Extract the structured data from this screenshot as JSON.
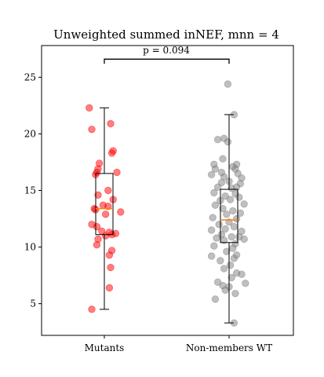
{
  "chart_data": {
    "type": "scatter",
    "title": "Unweighted summed inNEF, mnn = 4",
    "xlabel": "",
    "ylabel": "",
    "categories": [
      "Mutants",
      "Non-members WT"
    ],
    "ylim": [
      2.2,
      27.8
    ],
    "yticks": [
      5,
      10,
      15,
      20,
      25
    ],
    "grid": false,
    "annotation": {
      "text": "p = 0.094",
      "between": [
        0,
        1
      ],
      "y": 26.6
    },
    "colors": {
      "mutants_points": "#ff0000",
      "wt_points": "#808080",
      "box": "#000000",
      "median": "#ff7f0e"
    },
    "series": [
      {
        "category": "Mutants",
        "box": {
          "whisker_low": 4.5,
          "q1": 11.1,
          "median": 13.4,
          "q3": 16.5,
          "whisker_high": 22.3
        },
        "points": [
          [
            -0.12,
            22.3
          ],
          [
            -0.1,
            20.4
          ],
          [
            0.05,
            20.9
          ],
          [
            0.07,
            18.5
          ],
          [
            0.06,
            18.3
          ],
          [
            -0.04,
            17.4
          ],
          [
            -0.05,
            16.9
          ],
          [
            -0.06,
            16.6
          ],
          [
            -0.07,
            16.4
          ],
          [
            0.1,
            16.6
          ],
          [
            0.03,
            15.0
          ],
          [
            -0.05,
            14.6
          ],
          [
            0.07,
            14.2
          ],
          [
            -0.01,
            13.7
          ],
          [
            0.03,
            13.6
          ],
          [
            -0.08,
            13.4
          ],
          [
            -0.07,
            13.3
          ],
          [
            0.13,
            13.1
          ],
          [
            0.01,
            12.9
          ],
          [
            -0.1,
            12.0
          ],
          [
            -0.06,
            11.8
          ],
          [
            -0.02,
            11.4
          ],
          [
            0.04,
            11.3
          ],
          [
            0.09,
            11.2
          ],
          [
            0.01,
            11.0
          ],
          [
            0.06,
            11.1
          ],
          [
            -0.05,
            10.7
          ],
          [
            -0.06,
            10.2
          ],
          [
            0.06,
            9.7
          ],
          [
            0.04,
            9.3
          ],
          [
            0.05,
            8.2
          ],
          [
            0.04,
            6.4
          ],
          [
            -0.1,
            4.5
          ]
        ]
      },
      {
        "category": "Non-members WT",
        "box": {
          "whisker_low": 3.3,
          "q1": 10.4,
          "median": 12.4,
          "q3": 15.1,
          "whisker_high": 21.7
        },
        "points": [
          [
            -0.01,
            24.4
          ],
          [
            0.04,
            21.7
          ],
          [
            -0.09,
            19.5
          ],
          [
            -0.04,
            19.6
          ],
          [
            -0.01,
            19.3
          ],
          [
            -0.05,
            17.8
          ],
          [
            -0.12,
            17.3
          ],
          [
            0.06,
            17.3
          ],
          [
            0.03,
            17.1
          ],
          [
            0.05,
            16.9
          ],
          [
            -0.11,
            16.9
          ],
          [
            -0.06,
            16.6
          ],
          [
            -0.14,
            16.4
          ],
          [
            0.07,
            16.5
          ],
          [
            0.1,
            16.1
          ],
          [
            -0.04,
            16.2
          ],
          [
            0.0,
            15.8
          ],
          [
            -0.06,
            15.7
          ],
          [
            0.09,
            15.6
          ],
          [
            0.06,
            15.3
          ],
          [
            0.02,
            15.2
          ],
          [
            -0.09,
            15.3
          ],
          [
            -0.12,
            14.8
          ],
          [
            0.05,
            14.7
          ],
          [
            0.08,
            14.4
          ],
          [
            -0.03,
            14.5
          ],
          [
            -0.07,
            14.1
          ],
          [
            0.01,
            14.2
          ],
          [
            0.12,
            13.8
          ],
          [
            -0.11,
            13.7
          ],
          [
            -0.05,
            13.4
          ],
          [
            0.03,
            13.2
          ],
          [
            0.09,
            13.0
          ],
          [
            -0.02,
            12.9
          ],
          [
            -0.13,
            12.6
          ],
          [
            0.06,
            12.5
          ],
          [
            0.0,
            12.2
          ],
          [
            -0.08,
            12.0
          ],
          [
            0.04,
            11.8
          ],
          [
            -0.03,
            11.6
          ],
          [
            -0.14,
            11.5
          ],
          [
            0.1,
            11.4
          ],
          [
            -0.06,
            11.1
          ],
          [
            0.02,
            10.9
          ],
          [
            0.08,
            10.9
          ],
          [
            -0.1,
            10.8
          ],
          [
            0.12,
            10.7
          ],
          [
            -0.04,
            10.6
          ],
          [
            0.05,
            10.3
          ],
          [
            -0.12,
            10.1
          ],
          [
            0.03,
            9.9
          ],
          [
            -0.02,
            9.6
          ],
          [
            0.06,
            9.3
          ],
          [
            -0.14,
            9.2
          ],
          [
            0.04,
            9.0
          ],
          [
            -0.07,
            8.8
          ],
          [
            0.01,
            8.4
          ],
          [
            -0.04,
            8.1
          ],
          [
            0.06,
            7.7
          ],
          [
            0.1,
            7.6
          ],
          [
            0.02,
            7.3
          ],
          [
            -0.09,
            6.9
          ],
          [
            0.13,
            6.8
          ],
          [
            -0.05,
            6.6
          ],
          [
            0.0,
            6.5
          ],
          [
            -0.03,
            6.2
          ],
          [
            0.05,
            5.9
          ],
          [
            -0.11,
            5.4
          ],
          [
            0.04,
            3.3
          ]
        ]
      }
    ]
  }
}
